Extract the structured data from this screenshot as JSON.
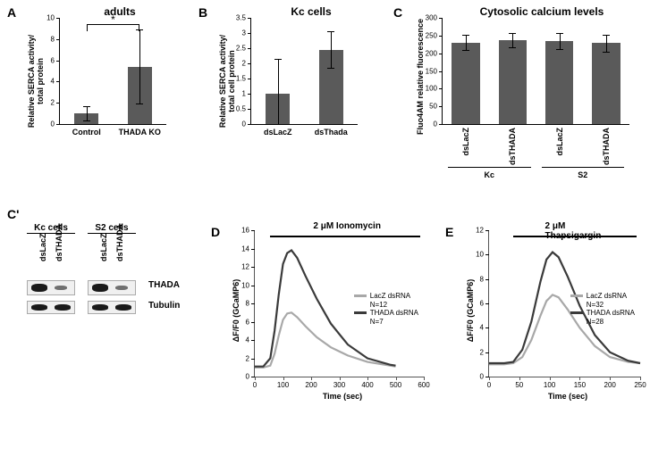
{
  "colors": {
    "bar": "#5a5a5a",
    "axis": "#000000",
    "line_lacz": "#a8a8a8",
    "line_thada": "#3a3a3a",
    "bg": "#ffffff"
  },
  "A": {
    "label": "A",
    "title": "adults",
    "ylabel": "Relative SERCA activity/\ntotal protein",
    "ylim": [
      0,
      10
    ],
    "ytick_step": 2,
    "categories": [
      "Control",
      "THADA KO"
    ],
    "values": [
      1.0,
      5.4
    ],
    "err": [
      0.7,
      3.5
    ],
    "bar_width": 0.45,
    "sig": "*"
  },
  "B": {
    "label": "B",
    "title": "Kc cells",
    "ylabel": "Relative SERCA activity/\ntotal cell protein",
    "ylim": [
      0,
      3.5
    ],
    "ytick_step": 0.5,
    "categories": [
      "dsLacZ",
      "dsThada"
    ],
    "values": [
      1.0,
      2.45
    ],
    "err": [
      1.15,
      0.6
    ],
    "bar_width": 0.45
  },
  "C": {
    "label": "C",
    "title": "Cytosolic calcium levels",
    "ylabel": "Fluo4AM relative fluorescence",
    "ylim": [
      0,
      300
    ],
    "ytick_step": 50,
    "groups": [
      "Kc",
      "S2"
    ],
    "categories": [
      "dsLacZ",
      "dsTHADA",
      "dsLacZ",
      "dsTHADA"
    ],
    "values": [
      230,
      238,
      234,
      229
    ],
    "err": [
      22,
      20,
      22,
      24
    ],
    "bar_width": 0.6
  },
  "Cp": {
    "label": "C'",
    "cell_lines": [
      "Kc cells",
      "S2 cells"
    ],
    "lanes": [
      "dsLacZ",
      "dsTHADA"
    ],
    "proteins": [
      "THADA",
      "Tubulin"
    ]
  },
  "D": {
    "label": "D",
    "treatment": "2 μM Ionomycin",
    "ylabel": "ΔF/F0 (GCaMP6)",
    "xlabel": "Time (sec)",
    "xlim": [
      0,
      600
    ],
    "xtick_step": 100,
    "ylim": [
      0,
      16
    ],
    "ytick_step": 2,
    "legend": [
      {
        "label": "LacZ dsRNA",
        "n": "N=12",
        "color": "#a8a8a8"
      },
      {
        "label": "THADA dsRNA",
        "n": "N=7",
        "color": "#3a3a3a"
      }
    ],
    "lacz": [
      [
        0,
        1.0
      ],
      [
        30,
        1.0
      ],
      [
        55,
        1.2
      ],
      [
        70,
        2.5
      ],
      [
        85,
        4.5
      ],
      [
        100,
        6.2
      ],
      [
        115,
        6.9
      ],
      [
        130,
        7.0
      ],
      [
        150,
        6.5
      ],
      [
        180,
        5.5
      ],
      [
        220,
        4.3
      ],
      [
        270,
        3.2
      ],
      [
        330,
        2.3
      ],
      [
        400,
        1.6
      ],
      [
        480,
        1.2
      ],
      [
        500,
        1.1
      ]
    ],
    "thada": [
      [
        0,
        1.1
      ],
      [
        30,
        1.1
      ],
      [
        55,
        2.0
      ],
      [
        70,
        5.0
      ],
      [
        85,
        9.0
      ],
      [
        100,
        12.3
      ],
      [
        115,
        13.5
      ],
      [
        130,
        13.8
      ],
      [
        150,
        13.0
      ],
      [
        180,
        11.0
      ],
      [
        220,
        8.5
      ],
      [
        270,
        5.8
      ],
      [
        330,
        3.5
      ],
      [
        400,
        2.0
      ],
      [
        480,
        1.3
      ],
      [
        500,
        1.2
      ]
    ]
  },
  "E": {
    "label": "E",
    "treatment": "2 μM Thapsigargin",
    "ylabel": "ΔF/F0 (GCaMP6)",
    "xlabel": "Time (sec)",
    "xlim": [
      0,
      250
    ],
    "xtick_step": 50,
    "ylim": [
      0,
      12
    ],
    "ytick_step": 2,
    "legend": [
      {
        "label": "LacZ dsRNA",
        "n": "N=32",
        "color": "#a8a8a8"
      },
      {
        "label": "THADA dsRNA",
        "n": "N=28",
        "color": "#3a3a3a"
      }
    ],
    "lacz": [
      [
        0,
        1.0
      ],
      [
        25,
        1.0
      ],
      [
        40,
        1.1
      ],
      [
        55,
        1.6
      ],
      [
        70,
        3.0
      ],
      [
        85,
        5.0
      ],
      [
        95,
        6.2
      ],
      [
        105,
        6.7
      ],
      [
        115,
        6.5
      ],
      [
        130,
        5.5
      ],
      [
        150,
        4.0
      ],
      [
        175,
        2.5
      ],
      [
        200,
        1.6
      ],
      [
        230,
        1.2
      ],
      [
        250,
        1.1
      ]
    ],
    "thada": [
      [
        0,
        1.1
      ],
      [
        25,
        1.1
      ],
      [
        40,
        1.2
      ],
      [
        55,
        2.2
      ],
      [
        70,
        4.5
      ],
      [
        85,
        7.8
      ],
      [
        95,
        9.6
      ],
      [
        105,
        10.2
      ],
      [
        115,
        9.8
      ],
      [
        130,
        8.2
      ],
      [
        150,
        5.8
      ],
      [
        175,
        3.4
      ],
      [
        200,
        2.0
      ],
      [
        230,
        1.3
      ],
      [
        250,
        1.1
      ]
    ]
  }
}
